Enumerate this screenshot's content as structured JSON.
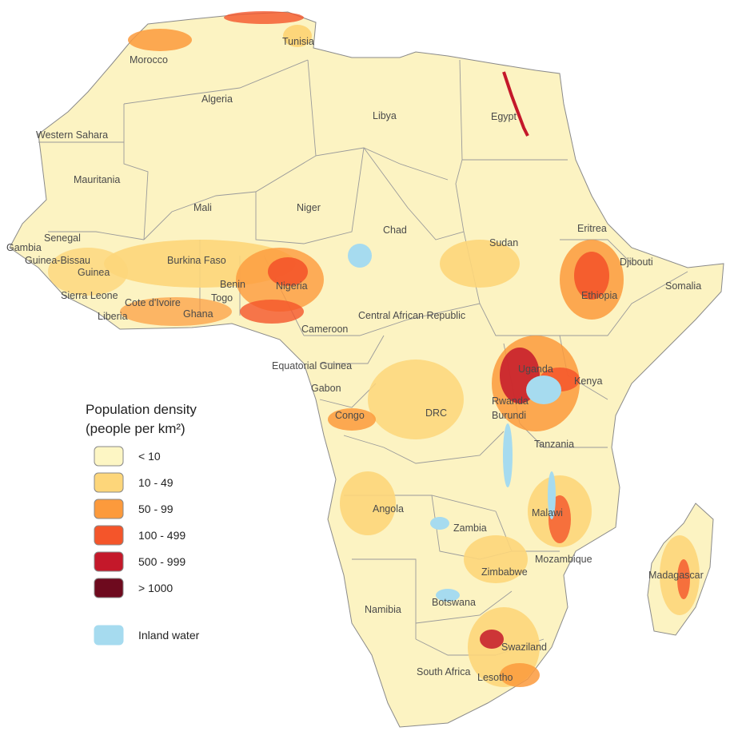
{
  "legend": {
    "title_line1": "Population density",
    "title_line2": "(people per km²)",
    "classes": [
      {
        "label": "< 10",
        "color": "#fdf6c4"
      },
      {
        "label": "10 - 49",
        "color": "#fdd67a"
      },
      {
        "label": "50 - 99",
        "color": "#fc9a3c"
      },
      {
        "label": "100 - 499",
        "color": "#f4552a"
      },
      {
        "label": "500 - 999",
        "color": "#c4182a"
      },
      {
        "label": "> 1000",
        "color": "#6e0a1e"
      }
    ],
    "water": {
      "label": "Inland water",
      "color": "#a6dbef"
    }
  },
  "countries": [
    "Tunisia",
    "Morocco",
    "Algeria",
    "Libya",
    "Egypt",
    "Western Sahara",
    "Mauritania",
    "Mali",
    "Niger",
    "Chad",
    "Sudan",
    "Eritrea",
    "Djibouti",
    "Somalia",
    "Ethiopia",
    "Senegal",
    "Gambia",
    "Guinea-Bissau",
    "Guinea",
    "Burkina Faso",
    "Benin",
    "Nigeria",
    "Sierra Leone",
    "Cote d'Ivoire",
    "Togo",
    "Liberia",
    "Ghana",
    "Cameroon",
    "Central African Republic",
    "Equatorial Guinea",
    "Gabon",
    "Congo",
    "DRC",
    "Uganda",
    "Kenya",
    "Rwanda",
    "Burundi",
    "Tanzania",
    "Angola",
    "Zambia",
    "Malawi",
    "Mozambique",
    "Zimbabwe",
    "Madagascar",
    "Namibia",
    "Botswana",
    "Swaziland",
    "South Africa",
    "Lesotho"
  ]
}
